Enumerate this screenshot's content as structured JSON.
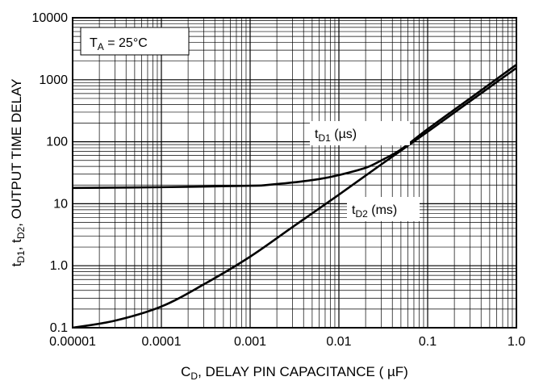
{
  "chart_data": {
    "type": "line",
    "scale": {
      "x": "log",
      "y": "log"
    },
    "xlim": [
      1e-05,
      1
    ],
    "ylim": [
      0.1,
      10000
    ],
    "grid": true,
    "xlabel": {
      "main": "C",
      "sub": "D",
      "rest": ", DELAY PIN CAPACITANCE ( ",
      "mu": "µ",
      "end": "F)"
    },
    "ylabel": {
      "t1": "t",
      "s1": "D1",
      "mid": ", t",
      "s2": "D2",
      "rest": ", OUTPUT TIME DELAY"
    },
    "xticks": [
      {
        "value": 1e-05,
        "label": "0.00001"
      },
      {
        "value": 0.0001,
        "label": "0.0001"
      },
      {
        "value": 0.001,
        "label": "0.001"
      },
      {
        "value": 0.01,
        "label": "0.01"
      },
      {
        "value": 0.1,
        "label": "0.1"
      },
      {
        "value": 1,
        "label": "1.0"
      }
    ],
    "yticks": [
      {
        "value": 0.1,
        "label": "0.1"
      },
      {
        "value": 1,
        "label": "1.0"
      },
      {
        "value": 10,
        "label": "10"
      },
      {
        "value": 100,
        "label": "100"
      },
      {
        "value": 1000,
        "label": "1000"
      },
      {
        "value": 10000,
        "label": "10000"
      }
    ],
    "condition": {
      "t": "T",
      "sub": "A",
      "rest": " = 25°C"
    },
    "series": [
      {
        "name": "tD1 (µs)",
        "label": {
          "t": "t",
          "sub": "D1",
          "rest": " (",
          "mu": "µ",
          "end": "s)"
        },
        "unit": "µs",
        "x": [
          1e-05,
          0.0001,
          0.001,
          0.0015,
          0.003,
          0.006,
          0.01,
          0.02,
          0.03,
          0.05,
          0.1,
          0.3,
          1
        ],
        "y": [
          18,
          18.5,
          19.5,
          20,
          22,
          25,
          29,
          38,
          50,
          75,
          160,
          500,
          1750
        ]
      },
      {
        "name": "tD2 (ms)",
        "label": {
          "t": "t",
          "sub": "D2",
          "rest": " (ms)"
        },
        "unit": "ms",
        "x": [
          1e-05,
          3e-05,
          0.0001,
          0.0003,
          0.001,
          0.003,
          0.01,
          0.03,
          0.1,
          0.3,
          1
        ],
        "y": [
          0.1,
          0.13,
          0.22,
          0.5,
          1.4,
          4.2,
          14,
          43,
          145,
          450,
          1550
        ]
      }
    ]
  }
}
